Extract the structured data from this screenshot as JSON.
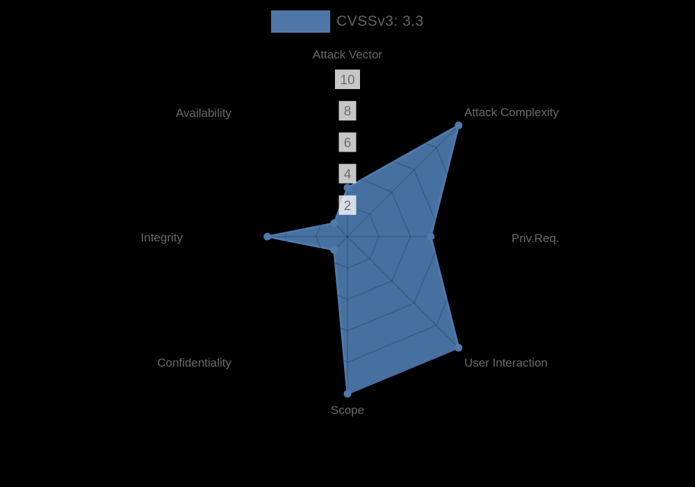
{
  "legend": {
    "label": "CVSSv3: 3.3",
    "swatch_color": "#4f78a8"
  },
  "chart_data": {
    "type": "radar",
    "title": "CVSSv3: 3.3",
    "categories": [
      "Attack Vector",
      "Attack Complexity",
      "Priv.Req.",
      "User Interaction",
      "Scope",
      "Confidentiality",
      "Integrity",
      "Availability"
    ],
    "series": [
      {
        "name": "CVSSv3: 3.3",
        "values": [
          3.1,
          10,
          5.3,
          10,
          10,
          1.2,
          5.1,
          1.2
        ]
      }
    ],
    "ticks": [
      2,
      4,
      6,
      8,
      10
    ],
    "rmin": 0,
    "rmax": 10,
    "grid": "spiderweb",
    "legend_position": "top",
    "colors": {
      "background": "#000000",
      "series_fill": "#4a76a8",
      "series_line": "#4f7aac",
      "grid_line": "rgba(0,0,0,0.16)",
      "tick_backdrop": "rgba(255,255,255,0.78)",
      "tick_text": "#6e6e6e",
      "axis_label": "#696969"
    }
  }
}
